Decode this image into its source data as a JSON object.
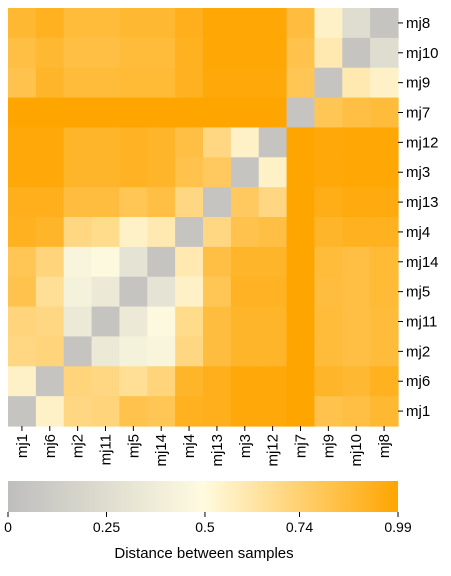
{
  "chart_data": {
    "type": "heatmap",
    "title": "",
    "row_labels": [
      "mj8",
      "mj10",
      "mj9",
      "mj7",
      "mj12",
      "mj3",
      "mj13",
      "mj4",
      "mj14",
      "mj5",
      "mj11",
      "mj2",
      "mj6",
      "mj1"
    ],
    "col_labels": [
      "mj1",
      "mj6",
      "mj2",
      "mj11",
      "mj5",
      "mj14",
      "mj4",
      "mj13",
      "mj3",
      "mj12",
      "mj7",
      "mj9",
      "mj10",
      "mj8"
    ],
    "values": [
      [
        0.88,
        0.92,
        0.86,
        0.86,
        0.88,
        0.88,
        0.93,
        0.98,
        0.98,
        0.98,
        0.85,
        0.55,
        0.25,
        0.05
      ],
      [
        0.84,
        0.88,
        0.84,
        0.84,
        0.86,
        0.86,
        0.92,
        0.98,
        0.98,
        0.98,
        0.82,
        0.6,
        0.05,
        0.25
      ],
      [
        0.82,
        0.9,
        0.86,
        0.86,
        0.87,
        0.87,
        0.92,
        0.97,
        0.97,
        0.97,
        0.8,
        0.05,
        0.6,
        0.55
      ],
      [
        0.99,
        0.99,
        0.99,
        0.99,
        0.99,
        0.99,
        0.99,
        0.99,
        0.99,
        0.99,
        0.05,
        0.8,
        0.84,
        0.86
      ],
      [
        0.97,
        0.97,
        0.9,
        0.9,
        0.91,
        0.9,
        0.84,
        0.7,
        0.55,
        0.05,
        0.99,
        0.97,
        0.98,
        0.98
      ],
      [
        0.97,
        0.97,
        0.9,
        0.9,
        0.91,
        0.9,
        0.82,
        0.78,
        0.05,
        0.55,
        0.99,
        0.97,
        0.98,
        0.98
      ],
      [
        0.93,
        0.93,
        0.85,
        0.85,
        0.8,
        0.84,
        0.7,
        0.05,
        0.78,
        0.7,
        0.99,
        0.94,
        0.96,
        0.96
      ],
      [
        0.92,
        0.9,
        0.7,
        0.68,
        0.55,
        0.6,
        0.05,
        0.7,
        0.82,
        0.84,
        0.99,
        0.9,
        0.92,
        0.92
      ],
      [
        0.8,
        0.72,
        0.45,
        0.48,
        0.3,
        0.05,
        0.6,
        0.84,
        0.9,
        0.9,
        0.99,
        0.86,
        0.84,
        0.87
      ],
      [
        0.82,
        0.66,
        0.42,
        0.35,
        0.05,
        0.3,
        0.55,
        0.8,
        0.91,
        0.91,
        0.99,
        0.85,
        0.84,
        0.87
      ],
      [
        0.72,
        0.7,
        0.35,
        0.05,
        0.35,
        0.48,
        0.68,
        0.85,
        0.9,
        0.9,
        0.99,
        0.86,
        0.84,
        0.86
      ],
      [
        0.7,
        0.72,
        0.05,
        0.35,
        0.42,
        0.45,
        0.7,
        0.85,
        0.9,
        0.9,
        0.99,
        0.86,
        0.84,
        0.86
      ],
      [
        0.55,
        0.05,
        0.72,
        0.7,
        0.66,
        0.72,
        0.9,
        0.93,
        0.97,
        0.97,
        0.99,
        0.9,
        0.88,
        0.92
      ],
      [
        0.05,
        0.55,
        0.7,
        0.72,
        0.82,
        0.8,
        0.92,
        0.93,
        0.97,
        0.97,
        0.99,
        0.82,
        0.84,
        0.88
      ]
    ],
    "colorbar": {
      "title": "Distance between samples",
      "ticks": [
        "0",
        "0.25",
        "0.5",
        "0.74",
        "0.99"
      ],
      "tick_values": [
        0,
        0.25,
        0.5,
        0.74,
        0.99
      ],
      "range": [
        0,
        0.99
      ],
      "colors": [
        "#bebebe",
        "#fffbe0",
        "#ffa500"
      ]
    }
  }
}
